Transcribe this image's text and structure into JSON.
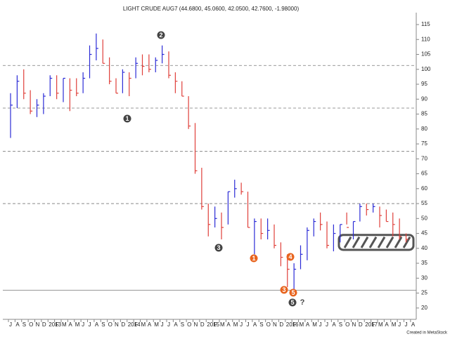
{
  "chart_data": {
    "type": "ohlc",
    "title": "LIGHT CRUDE AUG7 (44.6800, 45.0600, 42.0500, 42.7600, -1.98000)",
    "footnote": "Created in MetaStock",
    "categories": [
      "J",
      "A",
      "S",
      "O",
      "N",
      "D",
      "2013",
      "F",
      "M",
      "A",
      "M",
      "J",
      "J",
      "A",
      "S",
      "O",
      "N",
      "D",
      "2014",
      "F",
      "M",
      "A",
      "M",
      "J",
      "J",
      "A",
      "S",
      "O",
      "N",
      "D",
      "2015",
      "F",
      "M",
      "A",
      "M",
      "J",
      "J",
      "A",
      "S",
      "O",
      "N",
      "D",
      "2016",
      "F",
      "M",
      "A",
      "M",
      "J",
      "J",
      "A",
      "S",
      "O",
      "N",
      "D",
      "2017",
      "F",
      "M",
      "A",
      "M",
      "J",
      "J",
      "A"
    ],
    "high": [
      92,
      98,
      100,
      93,
      90,
      92,
      98,
      98,
      97,
      97,
      97,
      99,
      108,
      112,
      110,
      104,
      97,
      100,
      99,
      104,
      105,
      105,
      104,
      108,
      106,
      99,
      96,
      91,
      82,
      67,
      55,
      54,
      52,
      59,
      63,
      62,
      59,
      50,
      50,
      50,
      48,
      42,
      38,
      35,
      41,
      47,
      50,
      52,
      49,
      48,
      48,
      52,
      49,
      55,
      55,
      55,
      54,
      53,
      52,
      50,
      45,
      null
    ],
    "low": [
      77,
      87,
      90,
      85,
      84,
      85,
      91,
      90,
      89,
      86,
      91,
      92,
      97,
      103,
      102,
      95,
      92,
      92,
      91,
      97,
      98,
      99,
      99,
      102,
      97,
      92,
      91,
      80,
      65,
      53,
      44,
      47,
      43,
      48,
      57,
      58,
      47,
      38,
      43,
      43,
      40,
      34,
      27,
      26,
      33,
      36,
      44,
      46,
      40,
      39,
      42,
      48,
      43,
      49,
      51,
      52,
      47,
      49,
      44,
      43,
      42,
      null
    ],
    "close": [
      88,
      96,
      92,
      86,
      88,
      91,
      97,
      92,
      97,
      93,
      92,
      97,
      105,
      107,
      102,
      96,
      92,
      99,
      97,
      102,
      101,
      100,
      103,
      105,
      98,
      96,
      91,
      81,
      66,
      54,
      48,
      50,
      47,
      59,
      60,
      59,
      47,
      49,
      45,
      46,
      41,
      37,
      33,
      33,
      38,
      46,
      49,
      48,
      41,
      45,
      48,
      47,
      49,
      54,
      53,
      54,
      51,
      49,
      48,
      44,
      43,
      null
    ],
    "up_color": "#2b2bd6",
    "down_color": "#e0403a",
    "ylim": [
      16.2,
      119
    ],
    "yticks": [
      20,
      25,
      30,
      35,
      40,
      45,
      50,
      55,
      60,
      65,
      70,
      75,
      80,
      85,
      90,
      95,
      100,
      105,
      110,
      115
    ],
    "levels": [
      {
        "value": 101.3,
        "style": "dashed"
      },
      {
        "value": 87,
        "style": "dashed"
      },
      {
        "value": 72.5,
        "style": "dashed"
      },
      {
        "value": 55,
        "style": "dashed"
      },
      {
        "value": 26,
        "style": "solid"
      }
    ],
    "zone": [
      39.5,
      44.5
    ],
    "annotations": [
      {
        "label": "2",
        "color": "#444444"
      },
      {
        "label": "1",
        "color": "#444444"
      },
      {
        "label": "3",
        "color": "#444444"
      },
      {
        "label": "1",
        "color": "#e8641e"
      },
      {
        "label": "4",
        "color": "#e8641e"
      },
      {
        "label": "3",
        "color": "#e8641e"
      },
      {
        "label": "5",
        "color": "#e8641e"
      },
      {
        "label": "5",
        "color": "#444444"
      },
      {
        "label": "?",
        "color": "#444444"
      }
    ]
  }
}
